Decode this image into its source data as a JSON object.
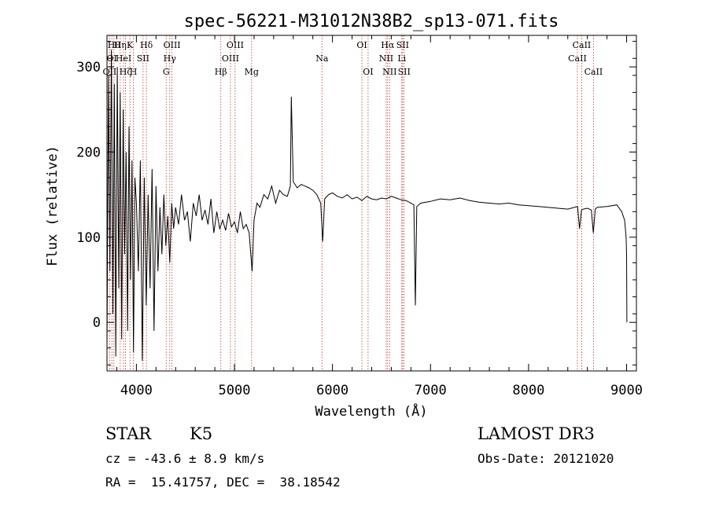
{
  "chart_data": {
    "type": "line",
    "title": "spec-56221-M31012N38B2_sp13-071.fits",
    "xlabel": "Wavelength (Å)",
    "ylabel": "Flux (relative)",
    "xlim": [
      3700,
      9100
    ],
    "ylim": [
      -57,
      337
    ],
    "xticks": [
      4000,
      5000,
      6000,
      7000,
      8000,
      9000
    ],
    "xtick_labels": [
      "4000",
      "5000",
      "6000",
      "7000",
      "8000",
      "9000"
    ],
    "yticks": [
      0,
      100,
      200,
      300
    ],
    "ytick_labels": [
      "0",
      "100",
      "200",
      "300"
    ],
    "grid": false,
    "series": [
      {
        "name": "spectrum",
        "x": [
          3700,
          3715,
          3730,
          3745,
          3760,
          3775,
          3790,
          3805,
          3820,
          3835,
          3850,
          3865,
          3880,
          3895,
          3910,
          3925,
          3940,
          3955,
          3970,
          3985,
          4000,
          4020,
          4040,
          4060,
          4080,
          4100,
          4120,
          4140,
          4160,
          4180,
          4200,
          4220,
          4240,
          4260,
          4280,
          4300,
          4320,
          4340,
          4360,
          4380,
          4400,
          4430,
          4460,
          4490,
          4520,
          4550,
          4580,
          4610,
          4640,
          4670,
          4700,
          4730,
          4760,
          4790,
          4820,
          4850,
          4880,
          4910,
          4940,
          4970,
          5000,
          5030,
          5060,
          5090,
          5120,
          5150,
          5180,
          5200,
          5230,
          5260,
          5300,
          5340,
          5380,
          5420,
          5460,
          5500,
          5540,
          5570,
          5580,
          5600,
          5640,
          5680,
          5720,
          5760,
          5800,
          5840,
          5880,
          5900,
          5920,
          5960,
          6000,
          6050,
          6100,
          6150,
          6200,
          6250,
          6300,
          6350,
          6400,
          6450,
          6500,
          6550,
          6600,
          6650,
          6700,
          6750,
          6800,
          6830,
          6845,
          6860,
          6900,
          7000,
          7100,
          7200,
          7300,
          7400,
          7500,
          7600,
          7700,
          7800,
          7900,
          8000,
          8100,
          8200,
          8300,
          8400,
          8500,
          8520,
          8540,
          8560,
          8600,
          8640,
          8660,
          8680,
          8700,
          8800,
          8900,
          8950,
          8980,
          8995,
          9000,
          9003
        ],
        "values": [
          -30,
          290,
          60,
          320,
          10,
          280,
          -40,
          300,
          40,
          270,
          -20,
          250,
          80,
          200,
          -10,
          230,
          50,
          190,
          -35,
          170,
          140,
          60,
          190,
          -45,
          170,
          20,
          150,
          40,
          180,
          -10,
          160,
          60,
          135,
          80,
          150,
          90,
          125,
          70,
          140,
          110,
          135,
          115,
          150,
          120,
          130,
          95,
          140,
          125,
          150,
          120,
          132,
          115,
          145,
          105,
          130,
          110,
          120,
          108,
          128,
          112,
          118,
          105,
          130,
          110,
          115,
          105,
          60,
          120,
          140,
          135,
          150,
          145,
          160,
          140,
          155,
          150,
          148,
          160,
          265,
          165,
          158,
          162,
          160,
          158,
          155,
          150,
          140,
          95,
          145,
          150,
          152,
          148,
          146,
          150,
          145,
          147,
          143,
          148,
          145,
          144,
          146,
          145,
          148,
          146,
          144,
          143,
          140,
          138,
          20,
          136,
          140,
          142,
          145,
          144,
          146,
          143,
          141,
          140,
          139,
          140,
          138,
          137,
          136,
          135,
          134,
          133,
          136,
          110,
          132,
          133,
          134,
          132,
          105,
          133,
          135,
          136,
          138,
          130,
          120,
          100,
          80,
          0
        ]
      }
    ],
    "spectral_lines": [
      {
        "w": 3727,
        "label": "OII",
        "row": 3
      },
      {
        "w": 3750,
        "label": "OI",
        "row": 2
      },
      {
        "w": 3771,
        "label": "Hθ",
        "row": 1
      },
      {
        "w": 3835,
        "label": "Hη",
        "row": 1
      },
      {
        "w": 3869,
        "label": "HeI",
        "row": 2
      },
      {
        "w": 3889,
        "label": "Hζ",
        "row": 3
      },
      {
        "w": 3934,
        "label": "K",
        "row": 1
      },
      {
        "w": 3969,
        "label": "H",
        "row": 3
      },
      {
        "w": 4068,
        "label": "SII",
        "row": 2
      },
      {
        "w": 4102,
        "label": "Hδ",
        "row": 1
      },
      {
        "w": 4304,
        "label": "G",
        "row": 3
      },
      {
        "w": 4340,
        "label": "Hγ",
        "row": 2
      },
      {
        "w": 4363,
        "label": "OIII",
        "row": 1
      },
      {
        "w": 4861,
        "label": "Hβ",
        "row": 3
      },
      {
        "w": 4959,
        "label": "OIII",
        "row": 2
      },
      {
        "w": 5007,
        "label": "OIII",
        "row": 1
      },
      {
        "w": 5175,
        "label": "Mg",
        "row": 3
      },
      {
        "w": 5893,
        "label": "Na",
        "row": 2
      },
      {
        "w": 6300,
        "label": "OI",
        "row": 1
      },
      {
        "w": 6363,
        "label": "OI",
        "row": 3
      },
      {
        "w": 6548,
        "label": "NII",
        "row": 2
      },
      {
        "w": 6563,
        "label": "Hα",
        "row": 1
      },
      {
        "w": 6583,
        "label": "NII",
        "row": 3
      },
      {
        "w": 6707,
        "label": "Li",
        "row": 2
      },
      {
        "w": 6716,
        "label": "SII",
        "row": 1
      },
      {
        "w": 6731,
        "label": "SII",
        "row": 3
      },
      {
        "w": 8498,
        "label": "CaII",
        "row": 2
      },
      {
        "w": 8542,
        "label": "CaII",
        "row": 1
      },
      {
        "w": 8662,
        "label": "CaII",
        "row": 3
      }
    ]
  },
  "info": {
    "class": "STAR",
    "subclass": "K5",
    "survey": "LAMOST DR3",
    "cz": "cz = -43.6 ± 8.9 km/s",
    "obs_date": "Obs-Date: 20121020",
    "coords": "RA =  15.41757, DEC =  38.18542"
  },
  "colors": {
    "line": "#000000",
    "marker": "#c0392b",
    "axis": "#000000"
  }
}
